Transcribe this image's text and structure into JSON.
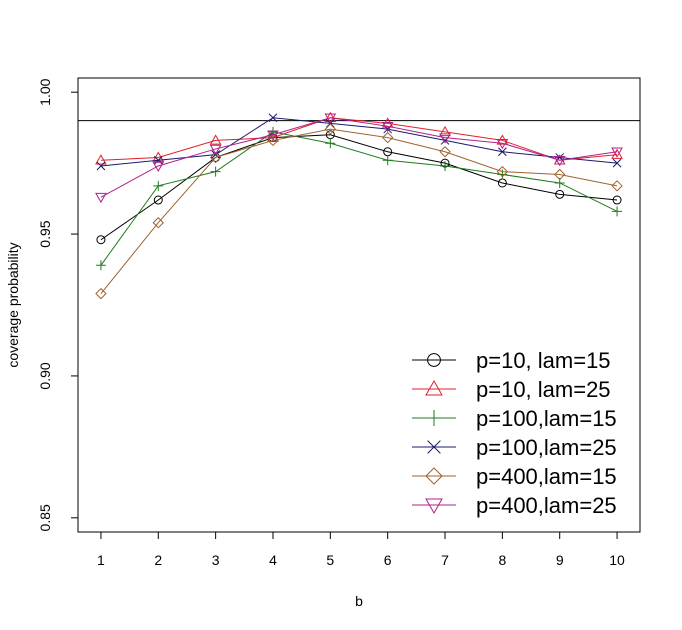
{
  "chart_data": {
    "type": "line",
    "title": "",
    "xlabel": "b",
    "ylabel": "coverage probability",
    "x": [
      1,
      2,
      3,
      4,
      5,
      6,
      7,
      8,
      9,
      10
    ],
    "x_tick_labels": [
      "1",
      "2",
      "3",
      "4",
      "5",
      "6",
      "7",
      "8",
      "9",
      "10"
    ],
    "y_ticks": [
      0.85,
      0.9,
      0.95,
      1.0
    ],
    "y_tick_labels": [
      "0.85",
      "0.90",
      "0.95",
      "1.00"
    ],
    "xlim": [
      0.6,
      10.4
    ],
    "ylim": [
      0.845,
      1.005
    ],
    "reference_line": 0.99,
    "grid": false,
    "legend_position": "bottom-right",
    "series": [
      {
        "name": "p=10,  lam=15",
        "marker": "circle",
        "color": "#000000",
        "values": [
          0.948,
          0.962,
          0.977,
          0.984,
          0.985,
          0.979,
          0.975,
          0.968,
          0.964,
          0.962
        ]
      },
      {
        "name": "p=10,  lam=25",
        "marker": "triangle-up",
        "color": "#e0202c",
        "values": [
          0.976,
          0.977,
          0.983,
          0.984,
          0.991,
          0.989,
          0.986,
          0.983,
          0.976,
          0.978
        ]
      },
      {
        "name": "p=100,lam=15",
        "marker": "plus",
        "color": "#1e7b1e",
        "values": [
          0.939,
          0.967,
          0.972,
          0.986,
          0.982,
          0.976,
          0.974,
          0.971,
          0.968,
          0.958
        ]
      },
      {
        "name": "p=100,lam=25",
        "marker": "cross",
        "color": "#1a1a6e",
        "values": [
          0.974,
          0.976,
          0.978,
          0.991,
          0.989,
          0.987,
          0.983,
          0.979,
          0.977,
          0.975
        ]
      },
      {
        "name": "p=400,lam=15",
        "marker": "diamond",
        "color": "#a0622d",
        "values": [
          0.929,
          0.954,
          0.977,
          0.983,
          0.987,
          0.984,
          0.979,
          0.972,
          0.971,
          0.967
        ]
      },
      {
        "name": "p=400,lam=25",
        "marker": "triangle-down",
        "color": "#b0208a",
        "values": [
          0.963,
          0.974,
          0.98,
          0.985,
          0.991,
          0.988,
          0.984,
          0.982,
          0.976,
          0.979
        ]
      }
    ]
  }
}
